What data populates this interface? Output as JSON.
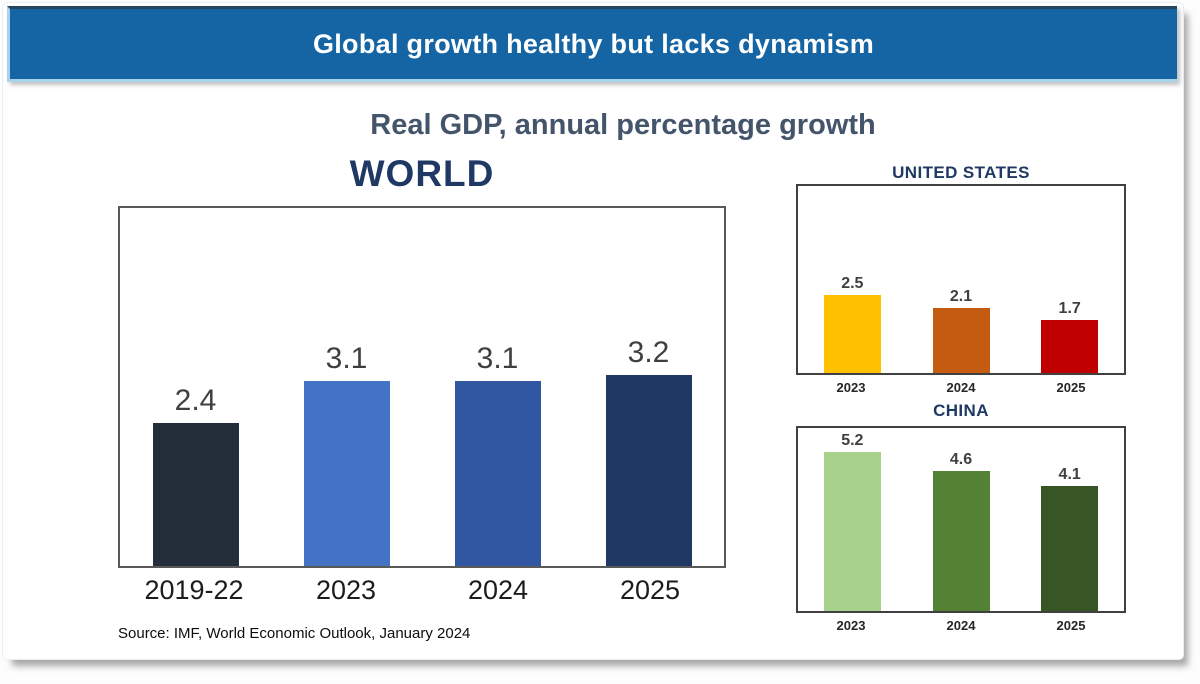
{
  "header": {
    "title": "Global growth healthy but lacks dynamism",
    "bg": "#1565A4",
    "text_color": "#FFFFFF"
  },
  "subtitle": "Real GDP, annual percentage growth",
  "source": "Source: IMF, World Economic Outlook, January 2024",
  "accent_colors": {
    "title_navy": "#1F3864",
    "subtitle_slate": "#44546A",
    "value_label_gray": "#3F3F3F"
  },
  "chart_data": [
    {
      "type": "bar",
      "title": "WORLD",
      "categories": [
        "2019-22",
        "2023",
        "2024",
        "2025"
      ],
      "values": [
        2.4,
        3.1,
        3.1,
        3.2
      ],
      "data_labels": [
        "2.4",
        "3.1",
        "3.1",
        "3.2"
      ],
      "colors": [
        "#242E3B",
        "#4472C4",
        "#3157A2",
        "#203864"
      ],
      "xlabel": "",
      "ylabel": "",
      "ylim": [
        0,
        6
      ],
      "grid": false,
      "legend": "none"
    },
    {
      "type": "bar",
      "title": "UNITED STATES",
      "categories": [
        "2023",
        "2024",
        "2025"
      ],
      "values": [
        2.5,
        2.1,
        1.7
      ],
      "data_labels": [
        "2.5",
        "2.1",
        "1.7"
      ],
      "colors": [
        "#FFC000",
        "#C55A11",
        "#C00000"
      ],
      "xlabel": "",
      "ylabel": "",
      "ylim": [
        0,
        6
      ],
      "grid": false,
      "legend": "none"
    },
    {
      "type": "bar",
      "title": "CHINA",
      "categories": [
        "2023",
        "2024",
        "2025"
      ],
      "values": [
        5.2,
        4.6,
        4.1
      ],
      "data_labels": [
        "5.2",
        "4.6",
        "4.1"
      ],
      "colors": [
        "#A9D18E",
        "#548235",
        "#375623"
      ],
      "xlabel": "",
      "ylabel": "",
      "ylim": [
        0,
        6
      ],
      "grid": false,
      "legend": "none"
    }
  ]
}
